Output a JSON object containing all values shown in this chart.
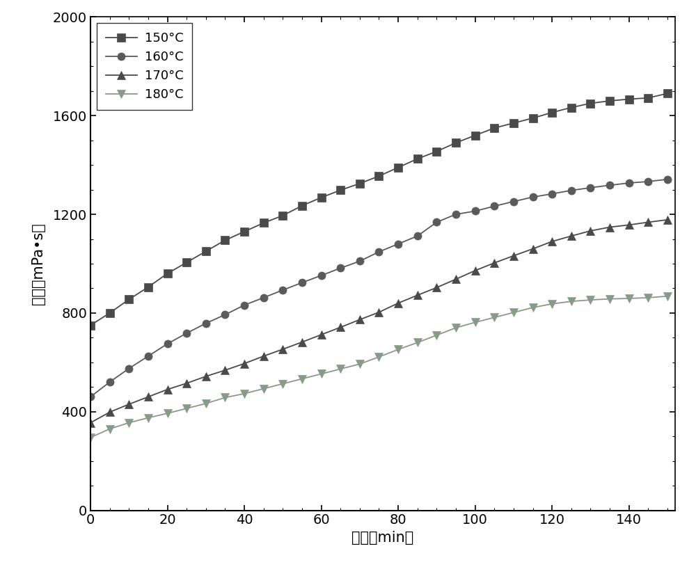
{
  "series": [
    {
      "label": "150°C",
      "color": "#4a4a4a",
      "marker": "s",
      "x": [
        0,
        5,
        10,
        15,
        20,
        25,
        30,
        35,
        40,
        45,
        50,
        55,
        60,
        65,
        70,
        75,
        80,
        85,
        90,
        95,
        100,
        105,
        110,
        115,
        120,
        125,
        130,
        135,
        140,
        145,
        150
      ],
      "y": [
        750,
        800,
        855,
        905,
        960,
        1005,
        1050,
        1095,
        1130,
        1165,
        1195,
        1235,
        1268,
        1298,
        1325,
        1355,
        1390,
        1425,
        1455,
        1490,
        1520,
        1550,
        1570,
        1590,
        1613,
        1633,
        1650,
        1660,
        1667,
        1672,
        1690
      ]
    },
    {
      "label": "160°C",
      "color": "#5a5a5a",
      "marker": "o",
      "x": [
        0,
        5,
        10,
        15,
        20,
        25,
        30,
        35,
        40,
        45,
        50,
        55,
        60,
        65,
        70,
        75,
        80,
        85,
        90,
        95,
        100,
        105,
        110,
        115,
        120,
        125,
        130,
        135,
        140,
        145,
        150
      ],
      "y": [
        460,
        520,
        575,
        625,
        675,
        718,
        758,
        793,
        832,
        862,
        893,
        923,
        952,
        982,
        1010,
        1048,
        1080,
        1112,
        1168,
        1200,
        1213,
        1233,
        1252,
        1270,
        1283,
        1297,
        1308,
        1318,
        1327,
        1333,
        1342
      ]
    },
    {
      "label": "170°C",
      "color": "#4a4a4a",
      "marker": "^",
      "x": [
        0,
        5,
        10,
        15,
        20,
        25,
        30,
        35,
        40,
        45,
        50,
        55,
        60,
        65,
        70,
        75,
        80,
        85,
        90,
        95,
        100,
        105,
        110,
        115,
        120,
        125,
        130,
        135,
        140,
        145,
        150
      ],
      "y": [
        355,
        398,
        430,
        460,
        490,
        515,
        543,
        568,
        595,
        625,
        653,
        682,
        712,
        742,
        773,
        803,
        840,
        872,
        903,
        937,
        972,
        1003,
        1032,
        1060,
        1090,
        1112,
        1133,
        1148,
        1157,
        1168,
        1178
      ]
    },
    {
      "label": "180°C",
      "color": "#8a9a8a",
      "marker": "v",
      "x": [
        0,
        5,
        10,
        15,
        20,
        25,
        30,
        35,
        40,
        45,
        50,
        55,
        60,
        65,
        70,
        75,
        80,
        85,
        90,
        95,
        100,
        105,
        110,
        115,
        120,
        125,
        130,
        135,
        140,
        145,
        150
      ],
      "y": [
        295,
        330,
        355,
        375,
        393,
        413,
        433,
        457,
        473,
        493,
        513,
        533,
        553,
        573,
        593,
        622,
        652,
        680,
        710,
        740,
        762,
        782,
        802,
        822,
        837,
        847,
        853,
        857,
        859,
        862,
        868
      ]
    }
  ],
  "xlabel": "时间（min）",
  "ylabel": "黏度（mPa•s）",
  "xlim": [
    0,
    152
  ],
  "ylim": [
    0,
    2000
  ],
  "xticks": [
    0,
    20,
    40,
    60,
    80,
    100,
    120,
    140
  ],
  "yticks": [
    0,
    400,
    800,
    1200,
    1600,
    2000
  ],
  "background_color": "#ffffff",
  "marker_size": 8,
  "line_width": 1.3,
  "axis_fontsize": 15,
  "tick_fontsize": 14,
  "legend_fontsize": 13
}
